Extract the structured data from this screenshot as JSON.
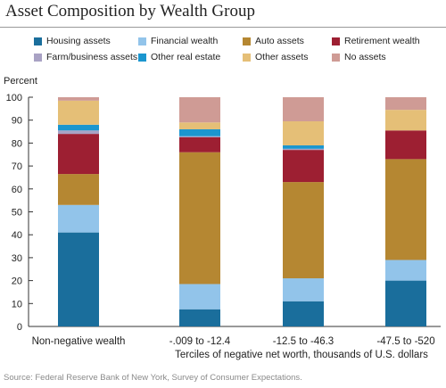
{
  "chart_data": {
    "type": "bar",
    "stacked": true,
    "title": "Asset Composition by Wealth Group",
    "ylabel": "Percent",
    "xlabel": "Terciles of negative net worth, thousands of U.S. dollars",
    "ylim": [
      0,
      100
    ],
    "yticks": [
      0,
      10,
      20,
      30,
      40,
      50,
      60,
      70,
      80,
      90,
      100
    ],
    "grid": false,
    "legend_position": "top",
    "categories": [
      "Non-negative wealth",
      "-.009 to -12.4",
      "-12.5 to -46.3",
      "-47.5 to -520"
    ],
    "series": [
      {
        "name": "Housing assets",
        "color": "#1a6e9c",
        "values": [
          41,
          7.5,
          11,
          20
        ]
      },
      {
        "name": "Financial wealth",
        "color": "#92c4ea",
        "values": [
          12,
          11,
          10,
          9
        ]
      },
      {
        "name": "Auto assets",
        "color": "#b58732",
        "values": [
          13.5,
          57.5,
          42,
          44
        ]
      },
      {
        "name": "Retirement wealth",
        "color": "#9d1f32",
        "values": [
          17.5,
          6.5,
          14,
          12.5
        ]
      },
      {
        "name": "Farm/business assets",
        "color": "#a9a2c4",
        "values": [
          1.5,
          0.5,
          0.5,
          0
        ]
      },
      {
        "name": "Other real estate",
        "color": "#1b96cf",
        "values": [
          2.5,
          3,
          1.5,
          0
        ]
      },
      {
        "name": "Other assets",
        "color": "#e5bf77",
        "values": [
          10.5,
          3,
          10.5,
          9
        ]
      },
      {
        "name": "No assets",
        "color": "#cf9b95",
        "values": [
          1.5,
          11,
          10.5,
          5.5
        ]
      }
    ]
  },
  "source": "Source: Federal Reserve Bank of New York, Survey of Consumer Expectations."
}
